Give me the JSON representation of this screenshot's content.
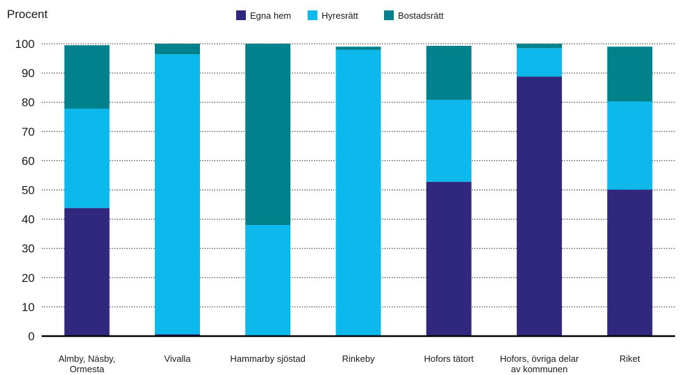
{
  "chart_data": {
    "type": "bar",
    "stacked": true,
    "ylabel": "Procent",
    "ylim": [
      0,
      100
    ],
    "yticks": [
      0,
      10,
      20,
      30,
      40,
      50,
      60,
      70,
      80,
      90,
      100
    ],
    "grid": "horizontal",
    "legend_position": "top",
    "categories": [
      [
        "Almby, Näsby,",
        "Ormesta"
      ],
      [
        "Vivalla"
      ],
      [
        "Hammarby sjöstad"
      ],
      [
        "Rinkeby"
      ],
      [
        "Hofors tätort"
      ],
      [
        "Hofors, övriga delar",
        "av kommunen"
      ],
      [
        "Riket"
      ]
    ],
    "series": [
      {
        "name": "Egna hem",
        "color": "#30287c",
        "values": [
          43.8,
          0.6,
          0,
          0,
          52.8,
          88.8,
          50.1
        ]
      },
      {
        "name": "Hyresrätt",
        "color": "#0db8ec",
        "values": [
          34.0,
          95.8,
          38,
          97.9,
          28.0,
          9.7,
          30.1
        ]
      },
      {
        "name": "Bostadsrätt",
        "color": "#00818c",
        "values": [
          21.7,
          3.6,
          62,
          1.1,
          18.5,
          1.5,
          18.8
        ]
      }
    ]
  }
}
